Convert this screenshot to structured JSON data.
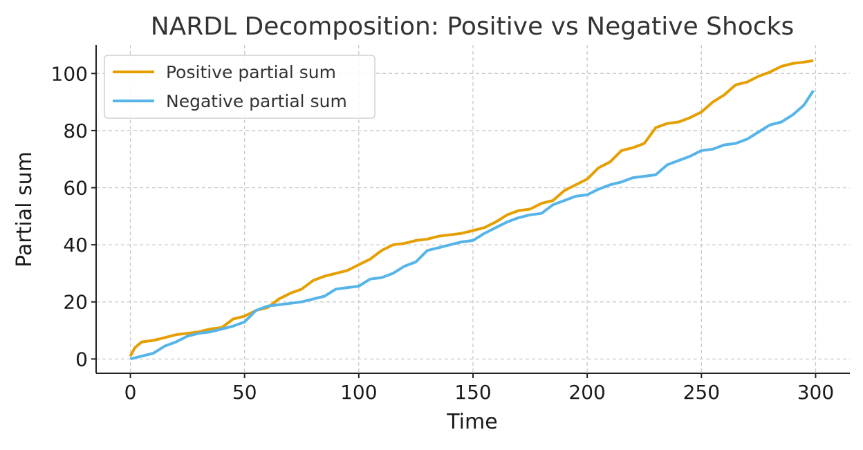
{
  "chart_data": {
    "type": "line",
    "title": "NARDL Decomposition: Positive vs Negative Shocks",
    "xlabel": "Time",
    "ylabel": "Partial sum",
    "xlim": [
      -15,
      315
    ],
    "ylim": [
      -5,
      110
    ],
    "xticks": [
      0,
      50,
      100,
      150,
      200,
      250,
      300
    ],
    "yticks": [
      0,
      20,
      40,
      60,
      80,
      100
    ],
    "grid": true,
    "legend_position": "top-left",
    "series": [
      {
        "name": "Positive partial sum",
        "color": "#E69F00",
        "x": [
          0,
          2,
          5,
          10,
          15,
          20,
          25,
          30,
          35,
          40,
          45,
          50,
          55,
          60,
          65,
          70,
          75,
          80,
          85,
          90,
          95,
          100,
          105,
          110,
          115,
          120,
          125,
          130,
          135,
          140,
          145,
          150,
          155,
          160,
          165,
          170,
          175,
          180,
          185,
          190,
          195,
          200,
          205,
          210,
          215,
          220,
          225,
          230,
          235,
          240,
          245,
          250,
          255,
          260,
          265,
          270,
          275,
          280,
          285,
          290,
          295,
          299
        ],
        "y": [
          1,
          4,
          6,
          6.5,
          7.5,
          8.5,
          9,
          9.5,
          10.5,
          11,
          14,
          15,
          17,
          18,
          21,
          23,
          24.5,
          27.5,
          29,
          30,
          31,
          33,
          35,
          38,
          40,
          40.5,
          41.5,
          42,
          43,
          43.5,
          44,
          45,
          46,
          48,
          50.5,
          52,
          52.5,
          54.5,
          55.5,
          59,
          61,
          63,
          67,
          69,
          73,
          74,
          75.5,
          81,
          82.5,
          83,
          84.5,
          86.5,
          90,
          92.5,
          96,
          97,
          99,
          100.5,
          102.5,
          103.5,
          104,
          104.5
        ]
      },
      {
        "name": "Negative partial sum",
        "color": "#56B4E9",
        "x": [
          0,
          5,
          10,
          15,
          20,
          25,
          30,
          35,
          40,
          45,
          50,
          55,
          60,
          65,
          70,
          75,
          80,
          85,
          90,
          95,
          100,
          105,
          110,
          115,
          120,
          125,
          130,
          135,
          140,
          145,
          150,
          155,
          160,
          165,
          170,
          175,
          180,
          185,
          190,
          195,
          200,
          205,
          210,
          215,
          220,
          225,
          230,
          235,
          240,
          245,
          250,
          255,
          260,
          265,
          270,
          275,
          280,
          285,
          290,
          295,
          299
        ],
        "y": [
          0,
          1,
          2,
          4.5,
          6,
          8,
          9,
          9.5,
          10.5,
          11.5,
          13,
          17,
          18.5,
          19,
          19.5,
          20,
          21,
          22,
          24.5,
          25,
          25.5,
          28,
          28.5,
          30,
          32.5,
          34,
          38,
          39,
          40,
          41,
          41.5,
          44,
          46,
          48,
          49.5,
          50.5,
          51,
          54,
          55.5,
          57,
          57.5,
          59.5,
          61,
          62,
          63.5,
          64,
          64.5,
          68,
          69.5,
          71,
          73,
          73.5,
          75,
          75.5,
          77,
          79.5,
          82,
          83,
          85.5,
          89,
          94
        ]
      }
    ]
  }
}
